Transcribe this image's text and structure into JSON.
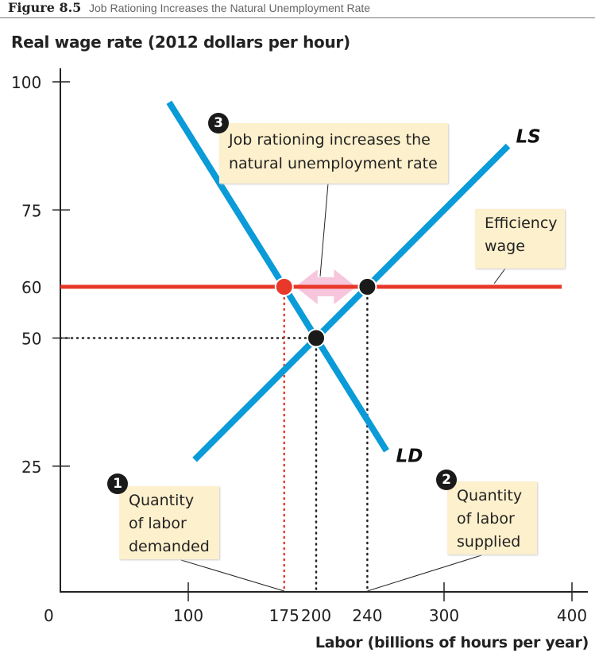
{
  "header": {
    "figure_number": "Figure 8.5",
    "figure_title": "Job Rationing Increases the Natural Unemployment Rate"
  },
  "chart_data": {
    "type": "line",
    "ylabel": "Real wage rate (2012 dollars per hour)",
    "xlabel": "Labor (billions of hours per year)",
    "xlim": [
      0,
      400
    ],
    "ylim": [
      0,
      100
    ],
    "x_ticks": [
      {
        "value": 0,
        "label": "0"
      },
      {
        "value": 100,
        "label": "100"
      },
      {
        "value": 175,
        "label": "175",
        "color": "#e8382a"
      },
      {
        "value": 200,
        "label": "200"
      },
      {
        "value": 240,
        "label": "240"
      },
      {
        "value": 300,
        "label": "300"
      },
      {
        "value": 400,
        "label": "400"
      }
    ],
    "y_ticks": [
      {
        "value": 25,
        "label": "25"
      },
      {
        "value": 50,
        "label": "50"
      },
      {
        "value": 60,
        "label": "60",
        "color": "#e8382a"
      },
      {
        "value": 75,
        "label": "75"
      },
      {
        "value": 100,
        "label": "100"
      }
    ],
    "grid": false,
    "series": [
      {
        "name": "LD",
        "color": "#0a9bd8",
        "points": [
          [
            85,
            96
          ],
          [
            255,
            28
          ]
        ]
      },
      {
        "name": "LS",
        "color": "#0a9bd8",
        "points": [
          [
            105,
            26.25
          ],
          [
            350,
            87.5
          ]
        ]
      },
      {
        "name": "Efficiency wage",
        "color": "#e8382a",
        "points": [
          [
            0,
            60
          ],
          [
            392,
            60
          ]
        ]
      }
    ],
    "points": [
      {
        "x": 175,
        "y": 60,
        "color": "#e8382a"
      },
      {
        "x": 240,
        "y": 60,
        "color": "#1a1a1a"
      },
      {
        "x": 200,
        "y": 50,
        "color": "#1a1a1a"
      }
    ],
    "arrow": {
      "from": 175,
      "to": 240,
      "y": 60,
      "color": "#f7c6dc"
    },
    "annotations": [
      {
        "badge": "1",
        "text": [
          "Quantity",
          "of labor",
          "demanded"
        ]
      },
      {
        "badge": "2",
        "text": [
          "Quantity",
          "of labor",
          "supplied"
        ]
      },
      {
        "badge": "3",
        "text": [
          "Job rationing increases the",
          "natural unemployment rate"
        ]
      },
      {
        "badge": "",
        "text": [
          "Efficiency",
          "wage"
        ]
      }
    ]
  }
}
